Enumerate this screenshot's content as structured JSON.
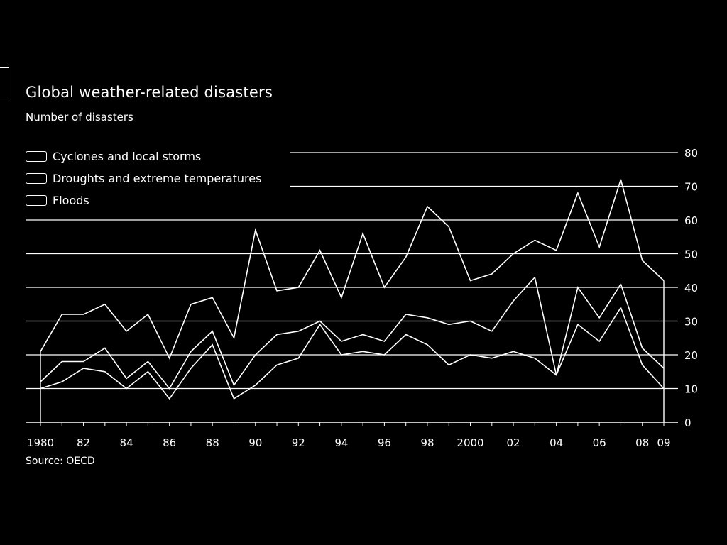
{
  "title": "Global weather-related disasters",
  "subtitle": "Number of disasters",
  "source": "Source: OECD",
  "colors": {
    "background": "#000000",
    "line": "#ffffff"
  },
  "chart_data": {
    "type": "area",
    "stacked": true,
    "x": [
      1980,
      1981,
      1982,
      1983,
      1984,
      1985,
      1986,
      1987,
      1988,
      1989,
      1990,
      1991,
      1992,
      1993,
      1994,
      1995,
      1996,
      1997,
      1998,
      1999,
      2000,
      2001,
      2002,
      2003,
      2004,
      2005,
      2006,
      2007,
      2008,
      2009
    ],
    "x_tick_labels": [
      "1980",
      "82",
      "84",
      "86",
      "88",
      "90",
      "92",
      "94",
      "96",
      "98",
      "2000",
      "02",
      "04",
      "06",
      "08",
      "09"
    ],
    "x_tick_years": [
      1980,
      1982,
      1984,
      1986,
      1988,
      1990,
      1992,
      1994,
      1996,
      1998,
      2000,
      2002,
      2004,
      2006,
      2008,
      2009
    ],
    "series": [
      {
        "name": "Floods",
        "values": [
          10,
          12,
          16,
          15,
          10,
          15,
          7,
          16,
          23,
          7,
          11,
          17,
          19,
          29,
          20,
          21,
          20,
          26,
          23,
          17,
          20,
          19,
          21,
          19,
          14,
          29,
          24,
          34,
          17,
          10
        ]
      },
      {
        "name": "Droughts and extreme temperatures",
        "values": [
          2,
          6,
          2,
          7,
          3,
          3,
          3,
          5,
          4,
          4,
          9,
          9,
          8,
          1,
          4,
          5,
          4,
          6,
          8,
          12,
          10,
          8,
          15,
          24,
          0,
          11,
          7,
          7,
          5,
          6
        ]
      },
      {
        "name": "Cyclones and local storms",
        "values": [
          9,
          14,
          14,
          13,
          14,
          14,
          9,
          14,
          10,
          14,
          37,
          13,
          13,
          21,
          13,
          30,
          16,
          17,
          33,
          29,
          12,
          17,
          14,
          11,
          37,
          28,
          21,
          31,
          26,
          26
        ]
      }
    ],
    "legend_order": [
      "Cyclones and local storms",
      "Droughts and extreme temperatures",
      "Floods"
    ],
    "ylim": [
      0,
      80
    ],
    "y_ticks": [
      0,
      10,
      20,
      30,
      40,
      50,
      60,
      70,
      80
    ],
    "y_axis_side": "right",
    "grid": true,
    "legend_position": "top-left"
  }
}
